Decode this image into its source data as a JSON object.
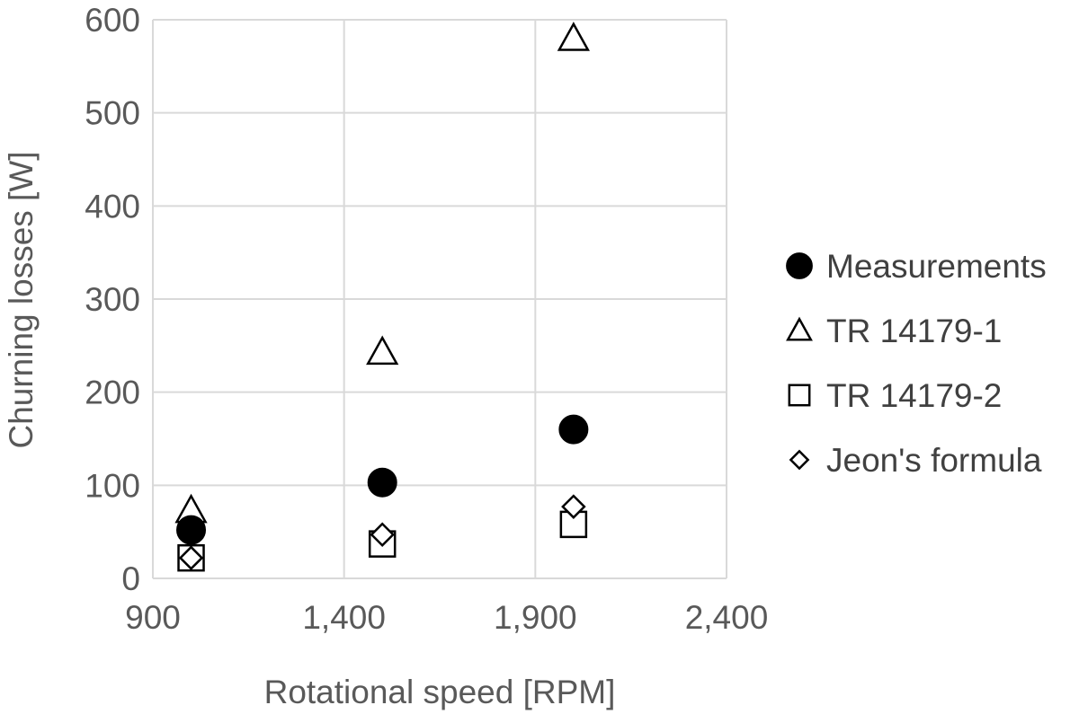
{
  "chart_data": {
    "type": "scatter",
    "title": "",
    "xlabel": "Rotational speed [RPM]",
    "ylabel": "Churning losses [W]",
    "xlim": [
      900,
      2400
    ],
    "ylim": [
      0,
      600
    ],
    "x_ticks": [
      900,
      1400,
      1900,
      2400
    ],
    "x_tick_labels": [
      "900",
      "1,400",
      "1,900",
      "2,400"
    ],
    "y_ticks": [
      0,
      100,
      200,
      300,
      400,
      500,
      600
    ],
    "y_tick_labels": [
      "0",
      "100",
      "200",
      "300",
      "400",
      "500",
      "600"
    ],
    "grid": true,
    "legend_position": "right",
    "series": [
      {
        "name": "Measurements",
        "marker": "filled-circle",
        "points": [
          {
            "x": 1000,
            "y": 52
          },
          {
            "x": 1500,
            "y": 103
          },
          {
            "x": 2000,
            "y": 160
          }
        ]
      },
      {
        "name": "TR 14179-1",
        "marker": "open-triangle",
        "points": [
          {
            "x": 1000,
            "y": 73
          },
          {
            "x": 1500,
            "y": 243
          },
          {
            "x": 2000,
            "y": 580
          }
        ]
      },
      {
        "name": "TR 14179-2",
        "marker": "open-square",
        "points": [
          {
            "x": 1000,
            "y": 22
          },
          {
            "x": 1500,
            "y": 37
          },
          {
            "x": 2000,
            "y": 58
          }
        ]
      },
      {
        "name": "Jeon's formula",
        "marker": "open-diamond",
        "points": [
          {
            "x": 1000,
            "y": 22
          },
          {
            "x": 1500,
            "y": 47
          },
          {
            "x": 2000,
            "y": 77
          }
        ]
      }
    ]
  }
}
